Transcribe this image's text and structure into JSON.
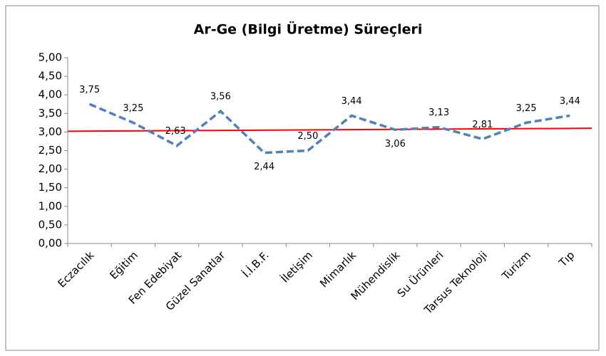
{
  "chart_data": {
    "type": "line",
    "title": "Ar-Ge (Bilgi Üretme) Süreçleri",
    "categories": [
      "Eczacılık",
      "Eğitim",
      "Fen Edebiyat",
      "Güzel Sanatlar",
      "İ.İ.B.F.",
      "İletişim",
      "Mimarlık",
      "Mühendislik",
      "Su Ürünleri",
      "Tarsus Teknoloji",
      "Turizm",
      "Tıp"
    ],
    "series": [
      {
        "color": "#4f81bd",
        "values": [
          3.75,
          3.25,
          2.63,
          3.56,
          2.44,
          2.5,
          3.44,
          3.06,
          3.13,
          2.81,
          3.25,
          3.44
        ],
        "value_labels": [
          "3,75",
          "3,25",
          "2,63",
          "3,56",
          "2,44",
          "2,50",
          "3,44",
          "3,06",
          "3,13",
          "2,81",
          "3,25",
          "3,44"
        ]
      }
    ],
    "reference_line": {
      "color": "#ff0000",
      "values": [
        3.02,
        3.1
      ]
    },
    "ylim": [
      0,
      5
    ],
    "yticks": [
      {
        "value": 0,
        "label": "0,00"
      },
      {
        "value": 0.5,
        "label": "0,50"
      },
      {
        "value": 1,
        "label": "1,00"
      },
      {
        "value": 1.5,
        "label": "1,50"
      },
      {
        "value": 2,
        "label": "2,00"
      },
      {
        "value": 2.5,
        "label": "2,50"
      },
      {
        "value": 3,
        "label": "3,00"
      },
      {
        "value": 3.5,
        "label": "3,50"
      },
      {
        "value": 4,
        "label": "4,00"
      },
      {
        "value": 4.5,
        "label": "4,50"
      },
      {
        "value": 5,
        "label": "5,00"
      }
    ],
    "grid": false
  }
}
